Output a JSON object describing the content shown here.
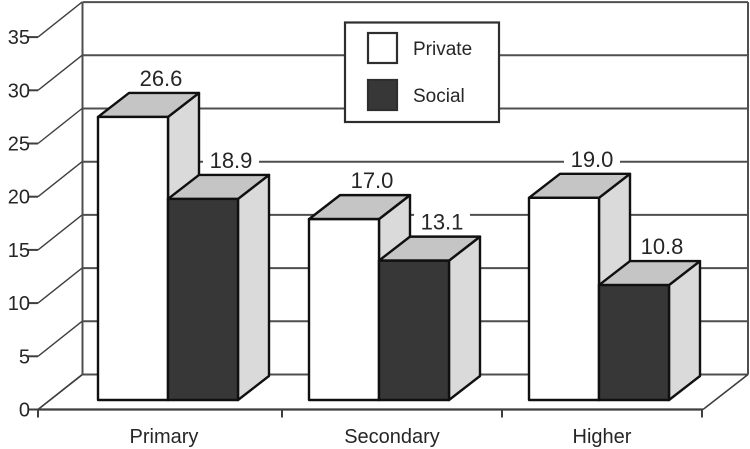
{
  "chart_data": {
    "type": "bar",
    "projection": "3d",
    "title": "",
    "xlabel": "",
    "ylabel": "",
    "categories": [
      "Primary",
      "Secondary",
      "Higher"
    ],
    "series": [
      {
        "name": "Private",
        "values": [
          26.6,
          17.0,
          19.0
        ],
        "labels": [
          "26.6",
          "17.0",
          "19.0"
        ]
      },
      {
        "name": "Social",
        "values": [
          18.9,
          13.1,
          10.8
        ],
        "labels": [
          "18.9",
          "13.1",
          "10.8"
        ]
      }
    ],
    "ylim": [
      0,
      35
    ],
    "ytick_step": 5,
    "yticks": [
      "0",
      "5",
      "10",
      "15",
      "20",
      "25",
      "30",
      "35"
    ],
    "grid": true,
    "legend_position": "top-center",
    "colors": {
      "private_fill": "#ffffff",
      "social_fill": "#373737",
      "top_face": "#c5c5c5",
      "side_face": "#dadada",
      "outline": "#101010",
      "gridline": "#4f4f4f",
      "axis": "#3f3f3f",
      "text": "#262626",
      "background": "#ffffff"
    }
  }
}
